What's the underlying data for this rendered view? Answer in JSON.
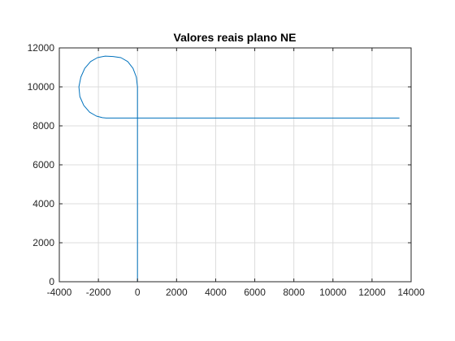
{
  "chart_data": {
    "type": "line",
    "title": "Valores reais plano NE",
    "xlabel": "",
    "ylabel": "",
    "xlim": [
      -4000,
      14000
    ],
    "ylim": [
      0,
      12000
    ],
    "xticks": [
      -4000,
      -2000,
      0,
      2000,
      4000,
      6000,
      8000,
      10000,
      12000,
      14000
    ],
    "yticks": [
      0,
      2000,
      4000,
      6000,
      8000,
      10000,
      12000
    ],
    "xtick_labels": [
      "-4000",
      "-2000",
      "0",
      "2000",
      "4000",
      "6000",
      "8000",
      "10000",
      "12000",
      "14000"
    ],
    "ytick_labels": [
      "0",
      "2000",
      "4000",
      "6000",
      "8000",
      "10000",
      "12000"
    ],
    "grid": true,
    "series": [
      {
        "color": "#0072bd",
        "x": [
          0,
          0,
          -60,
          -230,
          -500,
          -850,
          -1250,
          -1650,
          -2050,
          -2400,
          -2700,
          -2900,
          -3000,
          -2950,
          -2750,
          -2450,
          -2100,
          -1800,
          -1600,
          0,
          2000,
          4000,
          6000,
          8000,
          10000,
          12000,
          13400
        ],
        "y": [
          0,
          10000,
          10500,
          10950,
          11300,
          11500,
          11560,
          11580,
          11500,
          11300,
          10950,
          10500,
          10000,
          9500,
          9050,
          8700,
          8500,
          8420,
          8400,
          8400,
          8400,
          8400,
          8400,
          8400,
          8400,
          8400,
          8400
        ]
      }
    ]
  }
}
